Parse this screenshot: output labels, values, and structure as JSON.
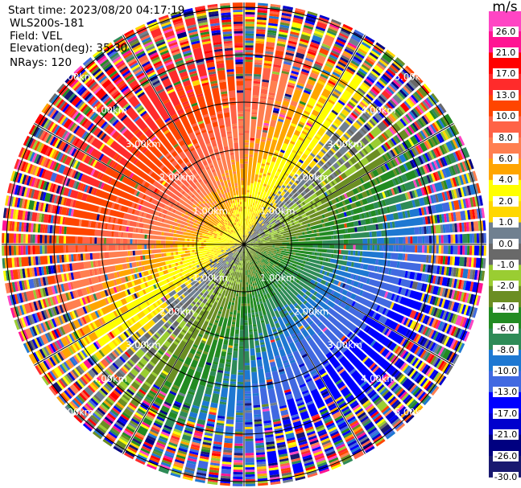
{
  "meta": {
    "start_time": "Start time: 2023/08/20 04:17:19",
    "instrument": "WLS200s-181",
    "field": "Field: VEL",
    "elevation": "Elevation(deg): 35.30",
    "nrays": "NRays: 120"
  },
  "chart_data": {
    "type": "heatmap",
    "subtype": "ppi-polar",
    "field": "VEL",
    "units": "m/s",
    "n_rays": 120,
    "max_range_km": 5.1,
    "range_rings_km": [
      1,
      2,
      3,
      4,
      5
    ],
    "range_ring_labels": [
      "1.00km",
      "2.00km",
      "3.00km",
      "4.00km",
      "5.00km"
    ],
    "spoke_angles_deg": [
      0,
      30,
      60,
      90,
      120,
      150,
      180,
      210,
      240,
      270,
      300,
      330
    ],
    "colorbar": {
      "title": "m/s",
      "boundaries": [
        30,
        26,
        21,
        17,
        13,
        10,
        8,
        6,
        4,
        2,
        1,
        0,
        -1,
        -2,
        -4,
        -6,
        -8,
        -10,
        -13,
        -17,
        -21,
        -26,
        -30
      ],
      "tick_labels": [
        "26.0",
        "21.0",
        "17.0",
        "13.0",
        "10.0",
        "8.0",
        "6.0",
        "4.0",
        "2.0",
        "1.0",
        "0.0",
        "-1.0",
        "-2.0",
        "-4.0",
        "-6.0",
        "-8.0",
        "-10.0",
        "-13.0",
        "-17.0",
        "-21.0",
        "-26.0",
        "-30.0"
      ],
      "colors": [
        "#ff45c4",
        "#ff1493",
        "#ff0000",
        "#ff2b2b",
        "#ff4500",
        "#ff6347",
        "#ff7f50",
        "#ffa500",
        "#ffff00",
        "#ffd700",
        "#708090",
        "#696969",
        "#9acd32",
        "#6b8e23",
        "#228b22",
        "#2e8b57",
        "#1e78d2",
        "#4169e1",
        "#0000ff",
        "#0000cd",
        "#000080",
        "#191970"
      ]
    },
    "pattern_note_values": {
      "max_positive_azimuth_deg": 315,
      "max_negative_azimuth_deg": 135
    }
  }
}
